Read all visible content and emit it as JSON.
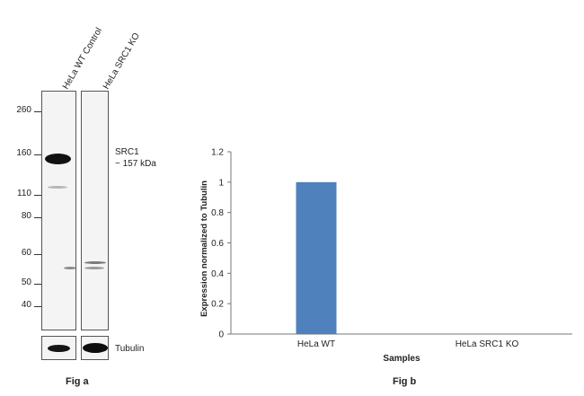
{
  "fig_a": {
    "lanes": [
      "HeLa WT Control",
      "HeLa SRC1 KO"
    ],
    "markers": [
      "260",
      "160",
      "110",
      "80",
      "60",
      "50",
      "40"
    ],
    "target_label": "SRC1",
    "target_size": "~ 157 kDa",
    "loading_control": "Tubulin",
    "caption": "Fig a"
  },
  "fig_b": {
    "caption": "Fig b"
  },
  "chart_data": {
    "type": "bar",
    "categories": [
      "HeLa WT",
      "HeLa  SRC1 KO"
    ],
    "values": [
      1,
      0
    ],
    "xlabel": "Samples",
    "ylabel": "Expression  normalized to Tubulin",
    "ylim": [
      0,
      1.2
    ],
    "yticks": [
      "0",
      "0.2",
      "0.4",
      "0.6",
      "0.8",
      "1",
      "1.2"
    ],
    "bar_color": "#4f81bd",
    "grid": false,
    "legend": "none"
  }
}
